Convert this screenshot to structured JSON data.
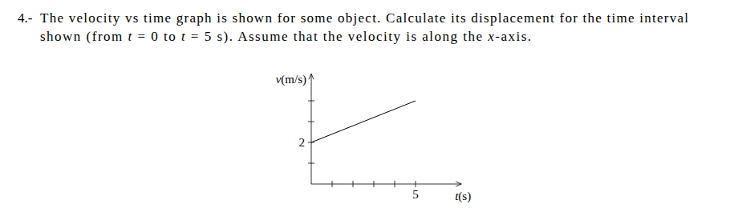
{
  "problem": {
    "number": "4.-",
    "lines": [
      [
        {
          "text": "The velocity vs time graph is shown for some object. Calculate its displacement for the time interval",
          "italic": false
        }
      ],
      [
        {
          "text": "shown (from ",
          "italic": false
        },
        {
          "text": "t",
          "italic": true
        },
        {
          "text": " = 0 to ",
          "italic": false
        },
        {
          "text": "t",
          "italic": true
        },
        {
          "text": " = 5 s). Assume that the velocity is along the ",
          "italic": false
        },
        {
          "text": "x",
          "italic": true
        },
        {
          "text": "-axis.",
          "italic": false
        }
      ]
    ]
  },
  "chart_data": {
    "type": "line",
    "xlabel": "t(s)",
    "ylabel": "v(m/s)",
    "x": [
      0,
      5
    ],
    "values": [
      2,
      4
    ],
    "color": "#000000",
    "xlim": [
      0,
      7.2
    ],
    "ylim": [
      0,
      5.3
    ],
    "xticks": [
      {
        "value": 1,
        "label": null
      },
      {
        "value": 2,
        "label": null
      },
      {
        "value": 3,
        "label": null
      },
      {
        "value": 4,
        "label": null
      },
      5
    ],
    "yticks": [
      {
        "value": 1,
        "label": null
      },
      2,
      {
        "value": 3,
        "label": null
      },
      {
        "value": 4,
        "label": null
      }
    ],
    "grid": false
  }
}
